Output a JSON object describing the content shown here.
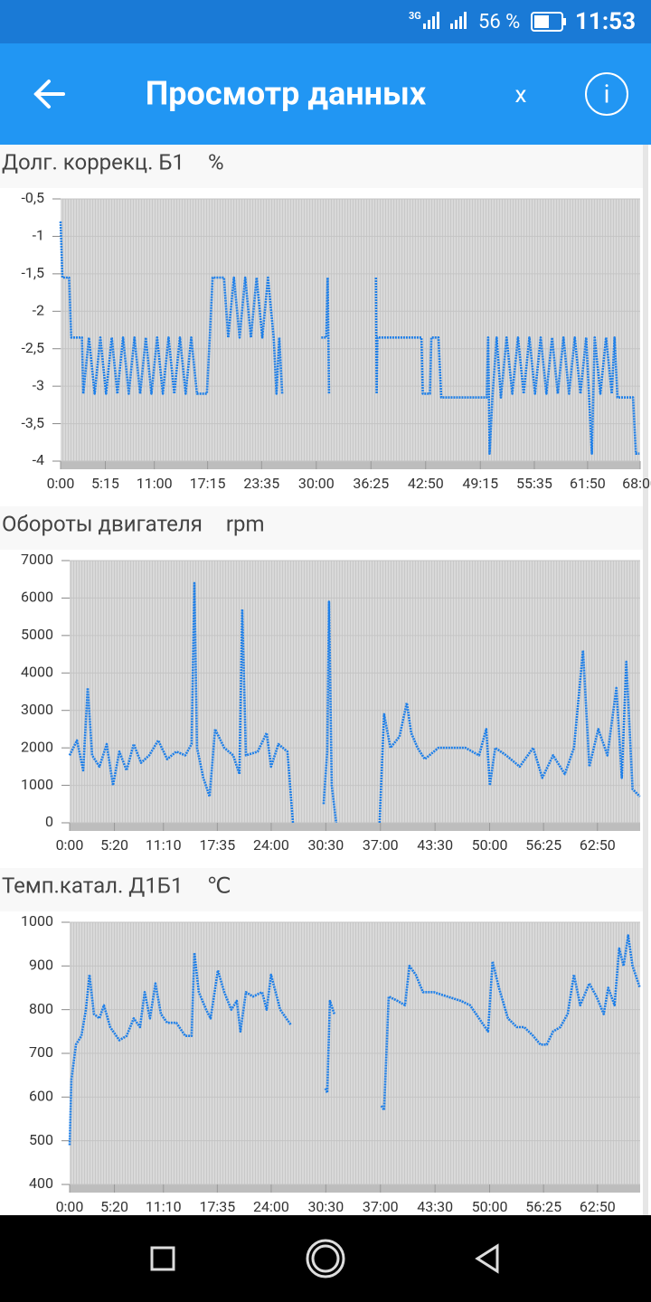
{
  "status_bar": {
    "network": "3G",
    "battery": "56 %",
    "time": "11:53"
  },
  "header": {
    "title": "Просмотр данных",
    "close": "x",
    "info": "i"
  },
  "chart_data": [
    {
      "type": "line",
      "title": "Долг. коррекц. Б1",
      "unit": "%",
      "x": [
        0,
        13,
        60,
        75,
        150,
        160,
        200,
        240,
        280,
        320,
        360,
        400,
        440,
        480,
        520,
        560,
        600,
        640,
        680,
        720,
        760,
        800,
        840,
        880,
        920,
        960,
        1030,
        1050,
        1070,
        1150,
        1180,
        1220,
        1260,
        1300,
        1340,
        1380,
        1420,
        1460,
        1500,
        1520,
        1540,
        1560,
        1700,
        1835,
        1870,
        1880,
        1890,
        2050,
        2220,
        2225,
        2230,
        2540,
        2550,
        2600,
        2610,
        2660,
        2680,
        3000,
        3010,
        3020,
        3040,
        3070,
        3100,
        3140,
        3180,
        3220,
        3260,
        3300,
        3340,
        3380,
        3420,
        3460,
        3500,
        3540,
        3580,
        3620,
        3660,
        3700,
        3740,
        3760,
        3800,
        3840,
        3880,
        3900,
        3920,
        4030,
        4050,
        4075
      ],
      "series": [
        {
          "color": "#1e7fe8",
          "values": [
            -0.8,
            -1.55,
            -1.55,
            -2.35,
            -2.35,
            -3.1,
            -2.35,
            -3.1,
            -2.35,
            -3.1,
            -2.35,
            -3.1,
            -2.35,
            -3.1,
            -2.35,
            -3.1,
            -2.35,
            -3.1,
            -2.35,
            -3.1,
            -2.35,
            -3.1,
            -2.35,
            -3.1,
            -2.35,
            -3.1,
            -3.1,
            -2.35,
            -1.55,
            -1.55,
            -2.35,
            -1.55,
            -2.35,
            -1.55,
            -2.35,
            -1.55,
            -2.35,
            -1.55,
            -2.35,
            -3.1,
            -2.35,
            -3.1,
            null,
            -2.35,
            -2.35,
            -1.55,
            -3.1,
            null,
            -1.55,
            -3.1,
            -2.35,
            -2.35,
            -3.1,
            -3.1,
            -2.35,
            -2.35,
            -3.15,
            -3.15,
            -2.35,
            -3.9,
            -3.15,
            -2.35,
            -3.15,
            -2.35,
            -3.1,
            -2.35,
            -3.1,
            -2.35,
            -3.1,
            -2.35,
            -3.1,
            -2.35,
            -3.1,
            -2.35,
            -3.1,
            -2.35,
            -3.1,
            -2.35,
            -3.9,
            -2.35,
            -3.1,
            -2.35,
            -3.1,
            -2.35,
            -3.15,
            -3.15,
            -3.9,
            -3.9
          ]
        }
      ],
      "xlim": [
        0,
        4080
      ],
      "ylim": [
        -4,
        -0.5
      ],
      "xticks": [
        {
          "value": 0,
          "label": "0:00"
        },
        {
          "value": 315,
          "label": "5:15"
        },
        {
          "value": 660,
          "label": "11:00"
        },
        {
          "value": 1035,
          "label": "17:15"
        },
        {
          "value": 1415,
          "label": "23:35"
        },
        {
          "value": 1800,
          "label": "30:00"
        },
        {
          "value": 2185,
          "label": "36:25"
        },
        {
          "value": 2570,
          "label": "42:50"
        },
        {
          "value": 2955,
          "label": "49:15"
        },
        {
          "value": 3335,
          "label": "55:35"
        },
        {
          "value": 3710,
          "label": "61:50"
        },
        {
          "value": 4080,
          "label": "68:00"
        }
      ],
      "yticks": [
        {
          "value": -0.5,
          "label": "-0,5"
        },
        -1,
        {
          "value": -1.5,
          "label": "-1,5"
        },
        -2,
        {
          "value": -2.5,
          "label": "-2,5"
        },
        -3,
        {
          "value": -3.5,
          "label": "-3,5"
        },
        -4
      ],
      "grid": true
    },
    {
      "type": "line",
      "title": "Обороты двигателя",
      "unit": "rpm",
      "x": [
        0,
        52,
        97,
        129,
        161,
        213,
        265,
        310,
        355,
        407,
        458,
        510,
        568,
        633,
        697,
        762,
        826,
        871,
        891,
        910,
        955,
        1000,
        1039,
        1104,
        1168,
        1213,
        1233,
        1259,
        1343,
        1407,
        1439,
        1491,
        1556,
        1595,
        1700,
        1814,
        1840,
        1853,
        1872,
        1904,
        2050,
        2214,
        2246,
        2291,
        2356,
        2408,
        2440,
        2485,
        2537,
        2634,
        2731,
        2827,
        2924,
        2976,
        3002,
        3040,
        3118,
        3215,
        3311,
        3376,
        3453,
        3537,
        3602,
        3667,
        3712,
        3776,
        3841,
        3905,
        3944,
        3976,
        4021,
        4073
      ],
      "series": [
        {
          "color": "#1e7fe8",
          "values": [
            1800,
            2200,
            1400,
            3600,
            1800,
            1500,
            2100,
            1000,
            1900,
            1400,
            2100,
            1600,
            1800,
            2200,
            1700,
            1900,
            1800,
            2100,
            6400,
            2000,
            1200,
            700,
            2500,
            2000,
            1800,
            1300,
            5700,
            1800,
            1900,
            2400,
            1500,
            2100,
            1900,
            0,
            null,
            500,
            1900,
            5900,
            1000,
            0,
            null,
            0,
            2900,
            2000,
            2300,
            3200,
            2400,
            2000,
            1700,
            2000,
            2000,
            2000,
            1800,
            2500,
            1000,
            2000,
            1800,
            1500,
            2000,
            1200,
            1800,
            1300,
            2000,
            4600,
            1500,
            2500,
            1800,
            3600,
            1200,
            4300,
            900,
            700
          ]
        }
      ],
      "xlim": [
        0,
        4075
      ],
      "ylim": [
        0,
        7000
      ],
      "xticks": [
        {
          "value": 0,
          "label": "0:00"
        },
        {
          "value": 320,
          "label": "5:20"
        },
        {
          "value": 670,
          "label": "11:10"
        },
        {
          "value": 1055,
          "label": "17:35"
        },
        {
          "value": 1440,
          "label": "24:00"
        },
        {
          "value": 1830,
          "label": "30:30"
        },
        {
          "value": 2220,
          "label": "37:00"
        },
        {
          "value": 2610,
          "label": "43:30"
        },
        {
          "value": 3000,
          "label": "50:00"
        },
        {
          "value": 3385,
          "label": "56:25"
        },
        {
          "value": 3770,
          "label": "62:50"
        }
      ],
      "yticks": [
        0,
        1000,
        2000,
        3000,
        4000,
        5000,
        6000,
        7000
      ],
      "grid": true
    },
    {
      "type": "line",
      "title": "Темп.катал. Д1Б1",
      "unit": "℃",
      "x": [
        0,
        13,
        45,
        84,
        116,
        142,
        174,
        213,
        245,
        290,
        355,
        407,
        458,
        503,
        536,
        574,
        613,
        652,
        697,
        762,
        826,
        871,
        891,
        923,
        975,
        1007,
        1059,
        1104,
        1155,
        1194,
        1220,
        1259,
        1310,
        1375,
        1407,
        1439,
        1504,
        1581,
        1700,
        1827,
        1840,
        1859,
        1891,
        2050,
        2227,
        2246,
        2279,
        2343,
        2395,
        2427,
        2472,
        2524,
        2601,
        2698,
        2795,
        2860,
        2924,
        2989,
        3021,
        3066,
        3131,
        3195,
        3247,
        3311,
        3363,
        3408,
        3453,
        3505,
        3557,
        3602,
        3647,
        3712,
        3763,
        3815,
        3847,
        3892,
        3925,
        3957,
        3989,
        4021,
        4073
      ],
      "series": [
        {
          "color": "#1e7fe8",
          "values": [
            490,
            640,
            720,
            740,
            800,
            880,
            790,
            780,
            810,
            760,
            730,
            740,
            780,
            760,
            840,
            780,
            860,
            790,
            770,
            770,
            740,
            740,
            930,
            840,
            800,
            780,
            890,
            840,
            800,
            820,
            750,
            840,
            830,
            840,
            800,
            880,
            800,
            765,
            null,
            620,
            610,
            820,
            790,
            null,
            580,
            570,
            830,
            820,
            810,
            900,
            880,
            840,
            840,
            830,
            820,
            810,
            780,
            750,
            910,
            850,
            780,
            760,
            760,
            740,
            720,
            720,
            750,
            760,
            790,
            880,
            810,
            860,
            830,
            790,
            850,
            810,
            940,
            900,
            970,
            900,
            850
          ]
        }
      ],
      "xlim": [
        0,
        4075
      ],
      "ylim": [
        400,
        1000
      ],
      "xticks": [
        {
          "value": 0,
          "label": "0:00"
        },
        {
          "value": 320,
          "label": "5:20"
        },
        {
          "value": 670,
          "label": "11:10"
        },
        {
          "value": 1055,
          "label": "17:35"
        },
        {
          "value": 1440,
          "label": "24:00"
        },
        {
          "value": 1830,
          "label": "30:30"
        },
        {
          "value": 2220,
          "label": "37:00"
        },
        {
          "value": 2610,
          "label": "43:30"
        },
        {
          "value": 3000,
          "label": "50:00"
        },
        {
          "value": 3385,
          "label": "56:25"
        },
        {
          "value": 3770,
          "label": "62:50"
        }
      ],
      "yticks": [
        400,
        500,
        600,
        700,
        800,
        900,
        1000
      ],
      "grid": true
    }
  ]
}
